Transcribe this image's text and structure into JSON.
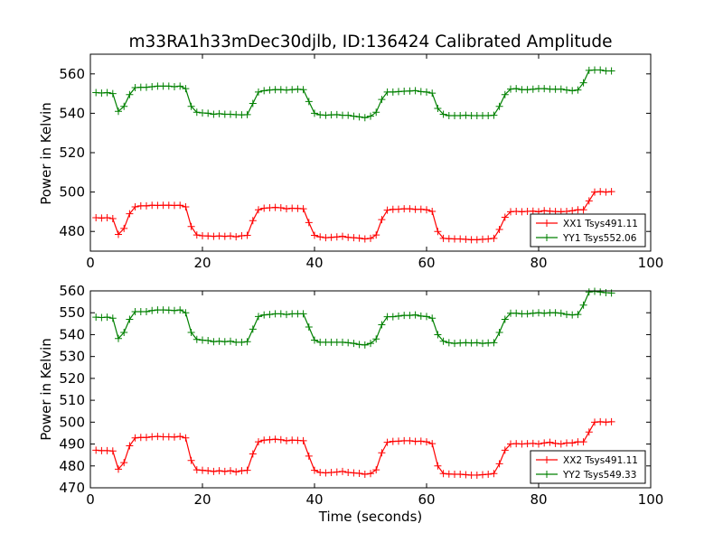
{
  "chart_data": [
    {
      "type": "line",
      "title": "m33RA1h33mDec30djlb, ID:136424 Calibrated Amplitude",
      "xlabel": "",
      "ylabel": "Power in Kelvin",
      "xlim": [
        0,
        100
      ],
      "ylim": [
        470,
        570
      ],
      "xticks": [
        0,
        20,
        40,
        60,
        80,
        100
      ],
      "yticks": [
        480,
        500,
        520,
        540,
        560
      ],
      "grid": false,
      "legend": "bottom-right",
      "series": [
        {
          "name": "XX1 Tsys491.11",
          "color": "#ff0000",
          "x": [
            1,
            2,
            3,
            4,
            5,
            6,
            7,
            8,
            9,
            10,
            11,
            12,
            13,
            14,
            15,
            16,
            17,
            18,
            19,
            20,
            21,
            22,
            23,
            24,
            25,
            26,
            27,
            28,
            29,
            30,
            31,
            32,
            33,
            34,
            35,
            36,
            37,
            38,
            39,
            40,
            41,
            42,
            43,
            44,
            45,
            46,
            47,
            48,
            49,
            50,
            51,
            52,
            53,
            54,
            55,
            56,
            57,
            58,
            59,
            60,
            61,
            62,
            63,
            64,
            65,
            66,
            67,
            68,
            69,
            70,
            71,
            72,
            73,
            74,
            75,
            76,
            77,
            78,
            79,
            80,
            81,
            82,
            83,
            84,
            85,
            86,
            87,
            88,
            89,
            90,
            91,
            92,
            93
          ],
          "y": [
            487,
            486.8,
            487,
            486.5,
            478.5,
            481.5,
            489,
            492.5,
            493,
            493,
            493.3,
            493.2,
            493.3,
            493.3,
            493.2,
            493.3,
            492.5,
            482.5,
            478.2,
            477.8,
            477.7,
            477.5,
            477.7,
            477.5,
            477.7,
            477.3,
            477.8,
            478,
            485.5,
            491,
            491.8,
            492,
            492.2,
            492,
            491.5,
            491.8,
            491.7,
            491.5,
            484.5,
            478,
            477.2,
            476.8,
            477,
            477.2,
            477.5,
            477,
            476.8,
            476.6,
            476.2,
            476.5,
            478.2,
            486,
            490.8,
            491.2,
            491.3,
            491.5,
            491.5,
            491.2,
            491.3,
            491,
            490.2,
            480,
            476.5,
            476.3,
            476.2,
            476.2,
            476,
            475.8,
            475.8,
            476,
            476.2,
            476.5,
            481,
            487.2,
            490,
            490.2,
            490,
            490.2,
            490.3,
            490,
            490.5,
            490.3,
            490.1,
            490,
            490.2,
            490.5,
            491,
            491,
            495.5,
            500,
            500.2,
            500,
            500.2
          ]
        },
        {
          "name": "YY1 Tsys552.06",
          "color": "#008000",
          "x": [
            1,
            2,
            3,
            4,
            5,
            6,
            7,
            8,
            9,
            10,
            11,
            12,
            13,
            14,
            15,
            16,
            17,
            18,
            19,
            20,
            21,
            22,
            23,
            24,
            25,
            26,
            27,
            28,
            29,
            30,
            31,
            32,
            33,
            34,
            35,
            36,
            37,
            38,
            39,
            40,
            41,
            42,
            43,
            44,
            45,
            46,
            47,
            48,
            49,
            50,
            51,
            52,
            53,
            54,
            55,
            56,
            57,
            58,
            59,
            60,
            61,
            62,
            63,
            64,
            65,
            66,
            67,
            68,
            69,
            70,
            71,
            72,
            73,
            74,
            75,
            76,
            77,
            78,
            79,
            80,
            81,
            82,
            83,
            84,
            85,
            86,
            87,
            88,
            89,
            90,
            91,
            92,
            93
          ],
          "y": [
            550.5,
            550.3,
            550.5,
            550,
            541,
            543.5,
            549.5,
            553,
            553.2,
            553.2,
            553.5,
            553.8,
            553.8,
            553.8,
            553.5,
            553.8,
            552.5,
            543.5,
            540.5,
            540.2,
            540,
            539.5,
            539.8,
            539.5,
            539.5,
            539.3,
            539.2,
            539.3,
            545,
            550.8,
            551.5,
            551.8,
            552,
            552,
            551.8,
            552,
            552.2,
            552,
            546,
            540,
            539.2,
            539,
            539.2,
            539.3,
            539,
            539,
            538.5,
            538.2,
            537.8,
            538.5,
            540.5,
            547,
            550.8,
            550.8,
            551,
            551.2,
            551.3,
            551.5,
            551,
            550.8,
            550.2,
            542.5,
            539.5,
            538.8,
            538.8,
            538.8,
            539,
            538.8,
            538.8,
            538.8,
            538.8,
            539,
            543.5,
            549.5,
            552.3,
            552.5,
            552,
            552,
            552.2,
            552.5,
            552.5,
            552.3,
            552.2,
            552.3,
            551.8,
            551.5,
            551.8,
            555.5,
            561.8,
            562,
            562,
            561.5,
            561.5
          ]
        }
      ]
    },
    {
      "type": "line",
      "title": "",
      "xlabel": "Time (seconds)",
      "ylabel": "Power in Kelvin",
      "xlim": [
        0,
        100
      ],
      "ylim": [
        470,
        560
      ],
      "xticks": [
        0,
        20,
        40,
        60,
        80,
        100
      ],
      "yticks": [
        470,
        480,
        490,
        500,
        510,
        520,
        530,
        540,
        550,
        560
      ],
      "grid": false,
      "legend": "bottom-right",
      "series": [
        {
          "name": "XX2 Tsys491.11",
          "color": "#ff0000",
          "x": [
            1,
            2,
            3,
            4,
            5,
            6,
            7,
            8,
            9,
            10,
            11,
            12,
            13,
            14,
            15,
            16,
            17,
            18,
            19,
            20,
            21,
            22,
            23,
            24,
            25,
            26,
            27,
            28,
            29,
            30,
            31,
            32,
            33,
            34,
            35,
            36,
            37,
            38,
            39,
            40,
            41,
            42,
            43,
            44,
            45,
            46,
            47,
            48,
            49,
            50,
            51,
            52,
            53,
            54,
            55,
            56,
            57,
            58,
            59,
            60,
            61,
            62,
            63,
            64,
            65,
            66,
            67,
            68,
            69,
            70,
            71,
            72,
            73,
            74,
            75,
            76,
            77,
            78,
            79,
            80,
            81,
            82,
            83,
            84,
            85,
            86,
            87,
            88,
            89,
            90,
            91,
            92,
            93
          ],
          "y": [
            487.2,
            487,
            487,
            486.8,
            478.5,
            481.5,
            489.2,
            492.8,
            493,
            493,
            493.3,
            493.5,
            493.3,
            493.3,
            493.2,
            493.5,
            492.8,
            482.5,
            478.2,
            478,
            477.8,
            477.5,
            477.8,
            477.5,
            477.8,
            477.3,
            477.8,
            478,
            485.5,
            491,
            491.8,
            492,
            492.2,
            492,
            491.5,
            491.8,
            491.7,
            491.5,
            484.5,
            478,
            477,
            476.8,
            477,
            477.2,
            477.5,
            477,
            476.8,
            476.6,
            476.2,
            476.5,
            478.2,
            486,
            490.8,
            491.2,
            491.3,
            491.5,
            491.5,
            491.2,
            491.3,
            491,
            490.2,
            480,
            476.5,
            476.3,
            476.2,
            476.2,
            476,
            475.8,
            475.8,
            476,
            476.2,
            476.5,
            481,
            487.2,
            490,
            490.2,
            490,
            490.2,
            490.3,
            490,
            490.5,
            490.8,
            490.3,
            490,
            490.5,
            490.5,
            491,
            491,
            495.5,
            500,
            500.2,
            500,
            500.2
          ]
        },
        {
          "name": "YY2 Tsys549.33",
          "color": "#008000",
          "x": [
            1,
            2,
            3,
            4,
            5,
            6,
            7,
            8,
            9,
            10,
            11,
            12,
            13,
            14,
            15,
            16,
            17,
            18,
            19,
            20,
            21,
            22,
            23,
            24,
            25,
            26,
            27,
            28,
            29,
            30,
            31,
            32,
            33,
            34,
            35,
            36,
            37,
            38,
            39,
            40,
            41,
            42,
            43,
            44,
            45,
            46,
            47,
            48,
            49,
            50,
            51,
            52,
            53,
            54,
            55,
            56,
            57,
            58,
            59,
            60,
            61,
            62,
            63,
            64,
            65,
            66,
            67,
            68,
            69,
            70,
            71,
            72,
            73,
            74,
            75,
            76,
            77,
            78,
            79,
            80,
            81,
            82,
            83,
            84,
            85,
            86,
            87,
            88,
            89,
            90,
            91,
            92,
            93
          ],
          "y": [
            548,
            547.8,
            548,
            547.5,
            538.2,
            541,
            547,
            550.5,
            550.5,
            550.5,
            551,
            551.3,
            551.3,
            551.2,
            551,
            551.3,
            550,
            541,
            537.8,
            537.5,
            537.3,
            536.8,
            537,
            536.8,
            537,
            536.5,
            536.5,
            536.8,
            542.5,
            548.3,
            549,
            549.2,
            549.5,
            549.5,
            549.2,
            549.5,
            549.5,
            549.5,
            543.5,
            537.5,
            536.5,
            536.5,
            536.5,
            536.5,
            536.5,
            536.3,
            536,
            535.5,
            535.3,
            536,
            538,
            544.5,
            548.2,
            548.2,
            548.5,
            548.8,
            548.8,
            549,
            548.5,
            548.3,
            547.5,
            540,
            537,
            536.3,
            536,
            536.2,
            536.3,
            536.2,
            536.3,
            536,
            536.2,
            536.3,
            541,
            547,
            549.8,
            549.8,
            549.5,
            549.5,
            549.8,
            550,
            549.8,
            550,
            550,
            549.8,
            549.2,
            549,
            549.2,
            553.5,
            559.5,
            559.8,
            559.5,
            559.2,
            559
          ]
        }
      ]
    }
  ]
}
